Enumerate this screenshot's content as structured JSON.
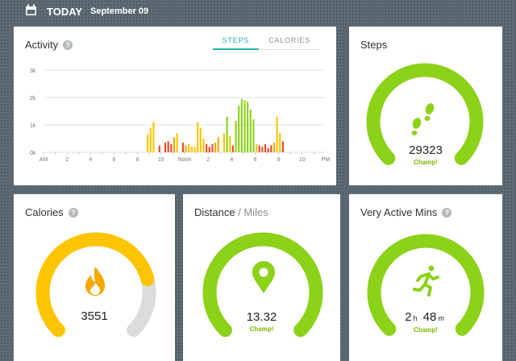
{
  "header": {
    "label": "TODAY",
    "date": "September 09"
  },
  "colors": {
    "green": "#8cd219",
    "yellow": "#ffc400",
    "orange": "#f6a800",
    "red": "#e84b2a",
    "track": "#dcdcdc",
    "teal": "#2ab4a4"
  },
  "activity": {
    "title": "Activity",
    "tabs": [
      {
        "label": "STEPS",
        "active": true
      },
      {
        "label": "CALORIES",
        "active": false
      }
    ],
    "chart_data": {
      "type": "bar",
      "ylim": [
        0,
        3000
      ],
      "yticks": [
        {
          "v": 0,
          "label": "0k"
        },
        {
          "v": 1000,
          "label": "1k"
        },
        {
          "v": 2000,
          "label": "2k"
        },
        {
          "v": 3000,
          "label": "3k"
        }
      ],
      "x_labels": [
        "AM",
        "2",
        "4",
        "6",
        "8",
        "10",
        "Noon",
        "2",
        "4",
        "6",
        "8",
        "10",
        "PM"
      ],
      "bins": 96,
      "bars": [
        {
          "i": 35,
          "v": 650,
          "c": "yellow"
        },
        {
          "i": 36,
          "v": 900,
          "c": "yellow"
        },
        {
          "i": 37,
          "v": 1100,
          "c": "yellow"
        },
        {
          "i": 39,
          "v": 250,
          "c": "red"
        },
        {
          "i": 41,
          "v": 350,
          "c": "red"
        },
        {
          "i": 42,
          "v": 400,
          "c": "red"
        },
        {
          "i": 43,
          "v": 300,
          "c": "red"
        },
        {
          "i": 44,
          "v": 550,
          "c": "orange"
        },
        {
          "i": 45,
          "v": 700,
          "c": "yellow"
        },
        {
          "i": 47,
          "v": 350,
          "c": "red"
        },
        {
          "i": 48,
          "v": 250,
          "c": "orange"
        },
        {
          "i": 49,
          "v": 300,
          "c": "yellow"
        },
        {
          "i": 50,
          "v": 200,
          "c": "yellow"
        },
        {
          "i": 51,
          "v": 200,
          "c": "yellow"
        },
        {
          "i": 52,
          "v": 1100,
          "c": "yellow"
        },
        {
          "i": 53,
          "v": 900,
          "c": "yellow"
        },
        {
          "i": 54,
          "v": 500,
          "c": "yellow"
        },
        {
          "i": 55,
          "v": 300,
          "c": "red"
        },
        {
          "i": 56,
          "v": 200,
          "c": "red"
        },
        {
          "i": 57,
          "v": 300,
          "c": "red"
        },
        {
          "i": 58,
          "v": 350,
          "c": "orange"
        },
        {
          "i": 59,
          "v": 550,
          "c": "orange"
        },
        {
          "i": 61,
          "v": 700,
          "c": "yellow"
        },
        {
          "i": 62,
          "v": 1300,
          "c": "green"
        },
        {
          "i": 63,
          "v": 600,
          "c": "yellow"
        },
        {
          "i": 64,
          "v": 250,
          "c": "red"
        },
        {
          "i": 65,
          "v": 1150,
          "c": "green"
        },
        {
          "i": 66,
          "v": 1700,
          "c": "green"
        },
        {
          "i": 67,
          "v": 1950,
          "c": "green"
        },
        {
          "i": 68,
          "v": 1900,
          "c": "green"
        },
        {
          "i": 69,
          "v": 1850,
          "c": "green"
        },
        {
          "i": 70,
          "v": 1550,
          "c": "green"
        },
        {
          "i": 71,
          "v": 1200,
          "c": "green"
        },
        {
          "i": 72,
          "v": 300,
          "c": "yellow"
        },
        {
          "i": 73,
          "v": 250,
          "c": "red"
        },
        {
          "i": 74,
          "v": 200,
          "c": "red"
        },
        {
          "i": 75,
          "v": 300,
          "c": "red"
        },
        {
          "i": 76,
          "v": 150,
          "c": "red"
        },
        {
          "i": 77,
          "v": 250,
          "c": "red"
        },
        {
          "i": 78,
          "v": 350,
          "c": "orange"
        },
        {
          "i": 79,
          "v": 1300,
          "c": "yellow"
        },
        {
          "i": 80,
          "v": 700,
          "c": "yellow"
        },
        {
          "i": 81,
          "v": 400,
          "c": "red"
        }
      ]
    }
  },
  "steps": {
    "title": "Steps",
    "value": "29323",
    "status": "Champ!",
    "icon": "footsteps-icon",
    "fraction": 1.0
  },
  "calories": {
    "title": "Calories",
    "value": "3551",
    "icon": "flame-icon",
    "fraction": 0.78
  },
  "distance": {
    "title": "Distance",
    "unit": "Miles",
    "value": "13.32",
    "status": "Champ!",
    "icon": "map-pin-icon",
    "fraction": 1.0
  },
  "active_mins": {
    "title": "Very Active Mins",
    "hours": "2",
    "hours_unit": "h",
    "minutes": "48",
    "minutes_unit": "m",
    "status": "Champ!",
    "icon": "runner-icon",
    "fraction": 1.0
  }
}
